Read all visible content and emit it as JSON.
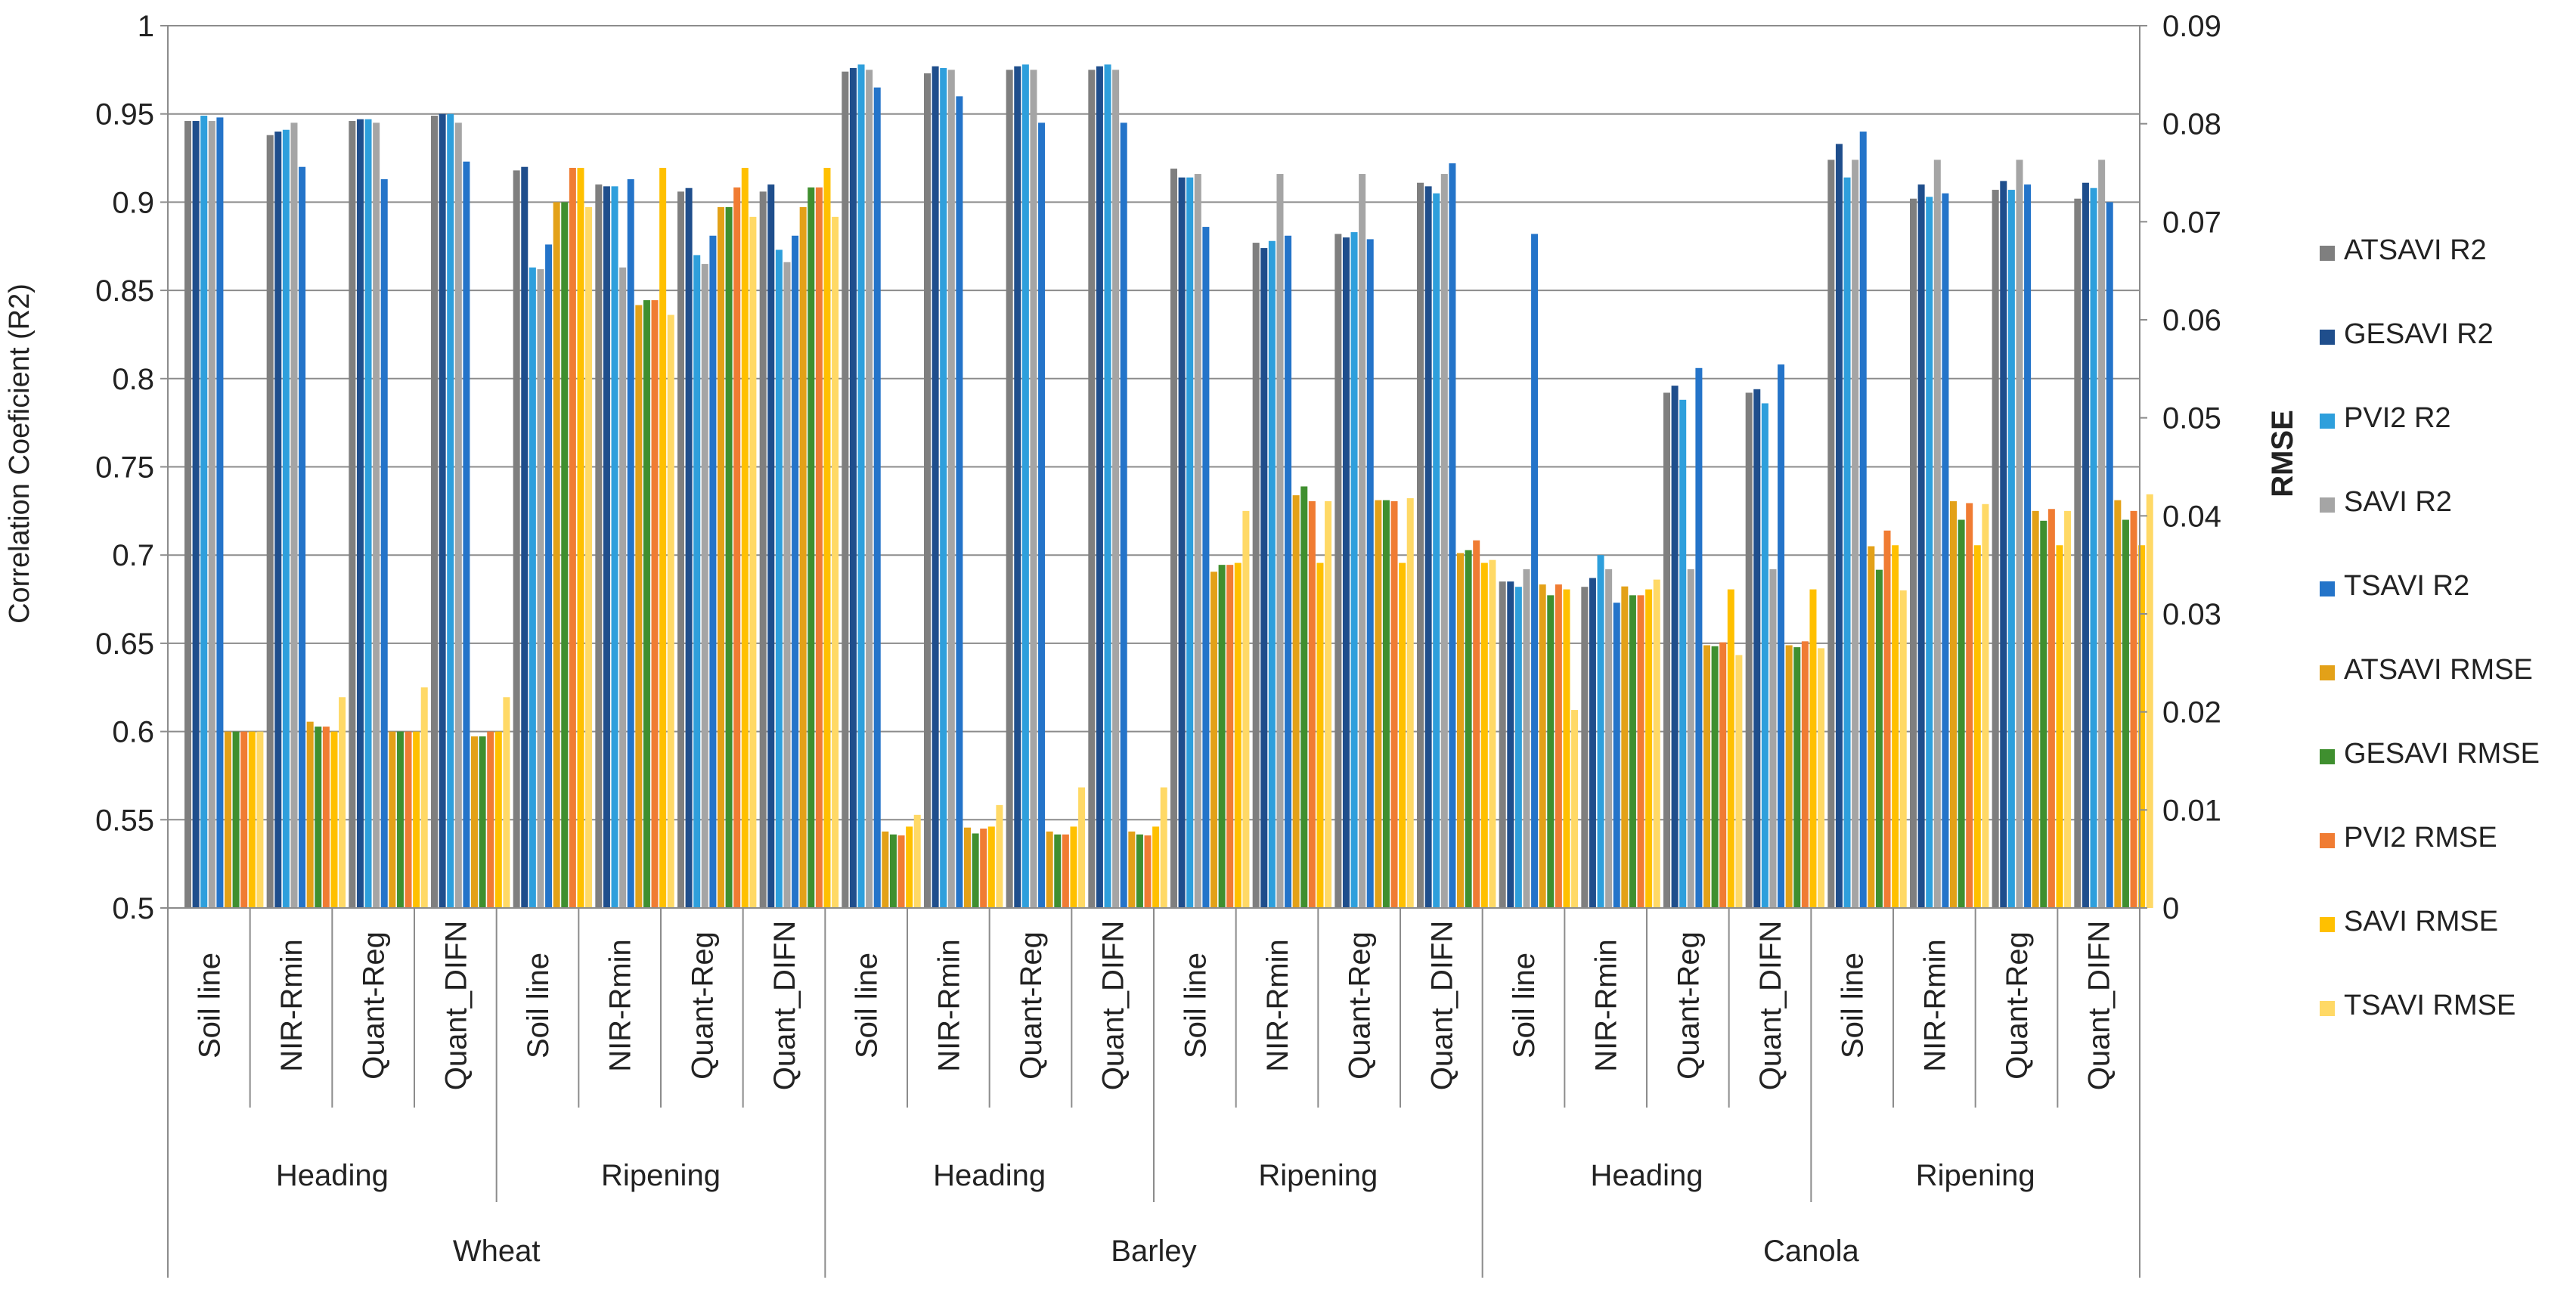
{
  "chart_data": {
    "type": "bar",
    "title": "",
    "ylabel_left": "Correlation Coeficient (R2)",
    "ylabel_right": "RMSE",
    "ylim_left": [
      0.5,
      1
    ],
    "ylim_right": [
      0,
      0.09
    ],
    "yticks_left": [
      "0.5",
      "0.55",
      "0.6",
      "0.65",
      "0.7",
      "0.75",
      "0.8",
      "0.85",
      "0.9",
      "0.95",
      "1"
    ],
    "yticks_right": [
      "0",
      "0.01",
      "0.02",
      "0.03",
      "0.04",
      "0.05",
      "0.06",
      "0.07",
      "0.08",
      "0.09"
    ],
    "grid": true,
    "legend_position": "right",
    "crops": [
      "Wheat",
      "Barley",
      "Canola"
    ],
    "stages": [
      "Heading",
      "Ripening"
    ],
    "methods": [
      "Soil line",
      "NIR-Rmin",
      "Quant-Reg",
      "Quant_DIFN"
    ],
    "categories": [
      "Wheat|Heading|Soil line",
      "Wheat|Heading|NIR-Rmin",
      "Wheat|Heading|Quant-Reg",
      "Wheat|Heading|Quant_DIFN",
      "Wheat|Ripening|Soil line",
      "Wheat|Ripening|NIR-Rmin",
      "Wheat|Ripening|Quant-Reg",
      "Wheat|Ripening|Quant_DIFN",
      "Barley|Heading|Soil line",
      "Barley|Heading|NIR-Rmin",
      "Barley|Heading|Quant-Reg",
      "Barley|Heading|Quant_DIFN",
      "Barley|Ripening|Soil line",
      "Barley|Ripening|NIR-Rmin",
      "Barley|Ripening|Quant-Reg",
      "Barley|Ripening|Quant_DIFN",
      "Canola|Heading|Soil line",
      "Canola|Heading|NIR-Rmin",
      "Canola|Heading|Quant-Reg",
      "Canola|Heading|Quant_DIFN",
      "Canola|Ripening|Soil line",
      "Canola|Ripening|NIR-Rmin",
      "Canola|Ripening|Quant-Reg",
      "Canola|Ripening|Quant_DIFN"
    ],
    "series": [
      {
        "name": "ATSAVI R2",
        "axis": "left",
        "color": "#7f7f7f",
        "values": [
          0.946,
          0.938,
          0.946,
          0.949,
          0.918,
          0.91,
          0.906,
          0.906,
          0.974,
          0.973,
          0.975,
          0.975,
          0.919,
          0.877,
          0.882,
          0.911,
          0.685,
          0.682,
          0.792,
          0.792,
          0.924,
          0.902,
          0.907,
          0.902
        ]
      },
      {
        "name": "GESAVI R2",
        "axis": "left",
        "color": "#1f4e8c",
        "values": [
          0.946,
          0.94,
          0.947,
          0.95,
          0.92,
          0.909,
          0.908,
          0.91,
          0.976,
          0.977,
          0.977,
          0.977,
          0.914,
          0.874,
          0.88,
          0.909,
          0.685,
          0.687,
          0.796,
          0.794,
          0.933,
          0.91,
          0.912,
          0.911
        ]
      },
      {
        "name": "PVI2 R2",
        "axis": "left",
        "color": "#2e9fdc",
        "values": [
          0.949,
          0.941,
          0.947,
          0.95,
          0.863,
          0.909,
          0.87,
          0.873,
          0.978,
          0.976,
          0.978,
          0.978,
          0.914,
          0.878,
          0.883,
          0.905,
          0.682,
          0.7,
          0.788,
          0.786,
          0.914,
          0.903,
          0.907,
          0.908
        ]
      },
      {
        "name": "SAVI R2",
        "axis": "left",
        "color": "#a5a5a5",
        "values": [
          0.946,
          0.945,
          0.945,
          0.945,
          0.862,
          0.863,
          0.865,
          0.866,
          0.975,
          0.975,
          0.975,
          0.975,
          0.916,
          0.916,
          0.916,
          0.916,
          0.692,
          0.692,
          0.692,
          0.692,
          0.924,
          0.924,
          0.924,
          0.924
        ]
      },
      {
        "name": "TSAVI R2",
        "axis": "left",
        "color": "#2474c9",
        "values": [
          0.948,
          0.92,
          0.913,
          0.923,
          0.876,
          0.913,
          0.881,
          0.881,
          0.965,
          0.96,
          0.945,
          0.945,
          0.886,
          0.881,
          0.879,
          0.922,
          0.882,
          0.673,
          0.806,
          0.808,
          0.94,
          0.905,
          0.91,
          0.9
        ]
      },
      {
        "name": "ATSAVI RMSE",
        "axis": "right",
        "color": "#e3a118",
        "values": [
          0.018,
          0.019,
          0.018,
          0.0175,
          0.072,
          0.0615,
          0.0715,
          0.0715,
          0.0078,
          0.0082,
          0.0078,
          0.0078,
          0.0343,
          0.0421,
          0.0416,
          0.0362,
          0.033,
          0.0328,
          0.0268,
          0.0268,
          0.0369,
          0.0415,
          0.0405,
          0.0416
        ]
      },
      {
        "name": "GESAVI RMSE",
        "axis": "right",
        "color": "#3f8f2f",
        "values": [
          0.018,
          0.0185,
          0.018,
          0.0175,
          0.072,
          0.062,
          0.0715,
          0.0735,
          0.0075,
          0.0076,
          0.0075,
          0.0075,
          0.035,
          0.043,
          0.0416,
          0.0365,
          0.0319,
          0.0319,
          0.0267,
          0.0266,
          0.0345,
          0.0396,
          0.0395,
          0.0396
        ]
      },
      {
        "name": "PVI2 RMSE",
        "axis": "right",
        "color": "#f07c33",
        "values": [
          0.018,
          0.0185,
          0.018,
          0.018,
          0.0755,
          0.062,
          0.0735,
          0.0735,
          0.0074,
          0.0081,
          0.0075,
          0.0074,
          0.035,
          0.0415,
          0.0415,
          0.0375,
          0.033,
          0.0319,
          0.0271,
          0.0272,
          0.0385,
          0.0413,
          0.0407,
          0.0405
        ]
      },
      {
        "name": "SAVI RMSE",
        "axis": "right",
        "color": "#ffc000",
        "values": [
          0.018,
          0.018,
          0.018,
          0.018,
          0.0755,
          0.0755,
          0.0755,
          0.0755,
          0.0083,
          0.0083,
          0.0083,
          0.0083,
          0.0352,
          0.0352,
          0.0352,
          0.0352,
          0.0325,
          0.0325,
          0.0325,
          0.0325,
          0.037,
          0.037,
          0.037,
          0.037
        ]
      },
      {
        "name": "TSAVI RMSE",
        "axis": "right",
        "color": "#ffd966",
        "values": [
          0.018,
          0.0215,
          0.0225,
          0.0215,
          0.0715,
          0.0605,
          0.0705,
          0.0705,
          0.0095,
          0.0105,
          0.0123,
          0.0123,
          0.0405,
          0.0415,
          0.0418,
          0.0355,
          0.0202,
          0.0335,
          0.0258,
          0.0265,
          0.0324,
          0.0412,
          0.0405,
          0.0422
        ]
      }
    ]
  }
}
